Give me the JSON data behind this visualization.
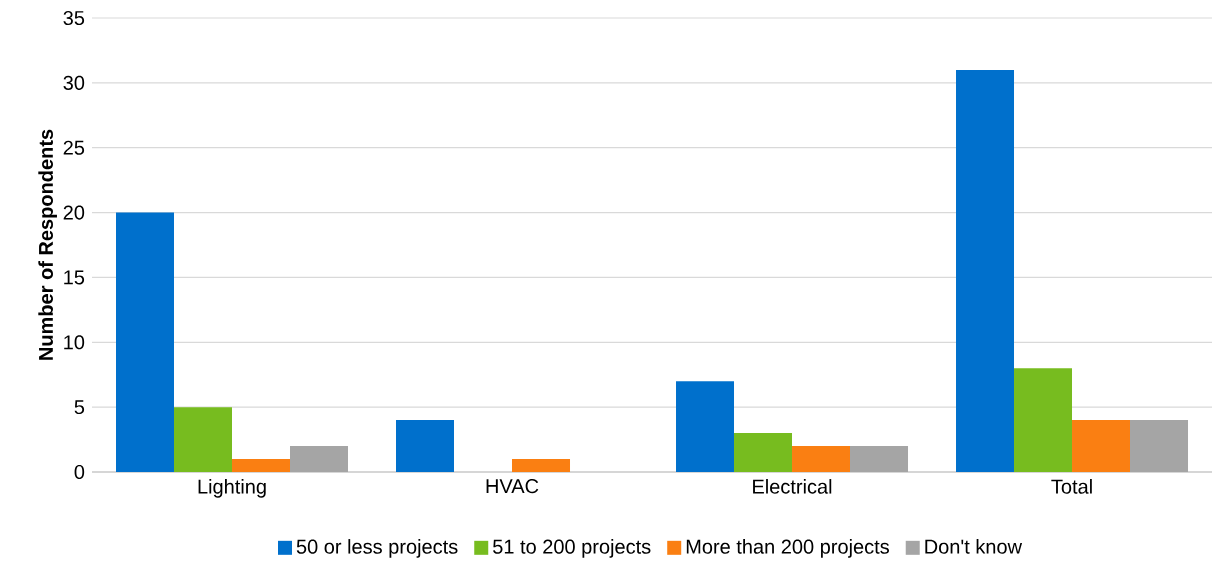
{
  "chart_data": {
    "type": "bar",
    "ylabel": "Number of Respondents",
    "categories": [
      "Lighting",
      "HVAC",
      "Electrical",
      "Total"
    ],
    "series": [
      {
        "name": "50 or less projects",
        "color": "#0070cc",
        "values": [
          20,
          4,
          7,
          31
        ]
      },
      {
        "name": "51 to 200 projects",
        "color": "#77bc1f",
        "values": [
          5,
          0,
          3,
          8
        ]
      },
      {
        "name": "More than 200 projects",
        "color": "#fa7f12",
        "values": [
          1,
          1,
          2,
          4
        ]
      },
      {
        "name": "Don't know",
        "color": "#a5a5a5",
        "values": [
          2,
          0,
          2,
          4
        ]
      }
    ],
    "ylim": [
      0,
      35
    ],
    "yticks": [
      0,
      5,
      10,
      15,
      20,
      25,
      30,
      35
    ],
    "grid": "y",
    "legend": "bottom"
  }
}
